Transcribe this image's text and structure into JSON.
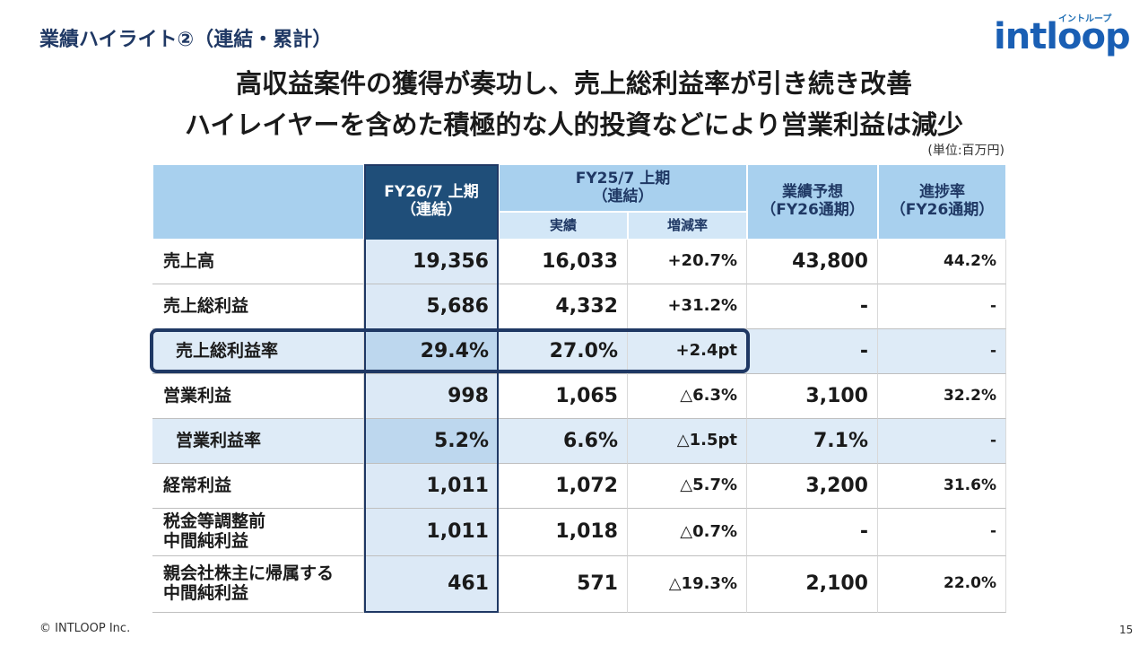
{
  "header": {
    "section_title": "業績ハイライト②（連結・累計）",
    "logo": "intloop",
    "logo_kana": "イントループ",
    "headline": [
      "高収益案件の獲得が奏功し、売上総利益率が引き続き改善",
      "ハイレイヤーを含めた積極的な人的投資などにより営業利益は減少"
    ],
    "unit": "(単位:百万円)"
  },
  "table": {
    "columns": {
      "fy26": [
        "FY26/7 上期",
        "（連結）"
      ],
      "fy25": [
        "FY25/7 上期",
        "（連結）"
      ],
      "fy25_sub": [
        "実績",
        "増減率"
      ],
      "forecast": [
        "業績予想",
        "（FY26通期）"
      ],
      "progress": [
        "進捗率",
        "（FY26通期）"
      ]
    },
    "rows": [
      [
        "売上高",
        "19,356",
        "16,033",
        "+20.7%",
        "43,800",
        "44.2%"
      ],
      [
        "売上総利益",
        "5,686",
        "4,332",
        "+31.2%",
        "-",
        "-"
      ],
      [
        "売上総利益率",
        "29.4%",
        "27.0%",
        "+2.4pt",
        "-",
        "-"
      ],
      [
        "営業利益",
        "998",
        "1,065",
        "△6.3%",
        "3,100",
        "32.2%"
      ],
      [
        "営業利益率",
        "5.2%",
        "6.6%",
        "△1.5pt",
        "7.1%",
        "-"
      ],
      [
        "経常利益",
        "1,011",
        "1,072",
        "△5.7%",
        "3,200",
        "31.6%"
      ],
      [
        "税金等調整前\n中間純利益",
        "1,011",
        "1,018",
        "△0.7%",
        "-",
        "-"
      ],
      [
        "親会社株主に帰属する\n中間純利益",
        "461",
        "571",
        "△19.3%",
        "2,100",
        "22.0%"
      ]
    ]
  },
  "footer": {
    "copyright": "© INTLOOP Inc.",
    "page": "15"
  }
}
